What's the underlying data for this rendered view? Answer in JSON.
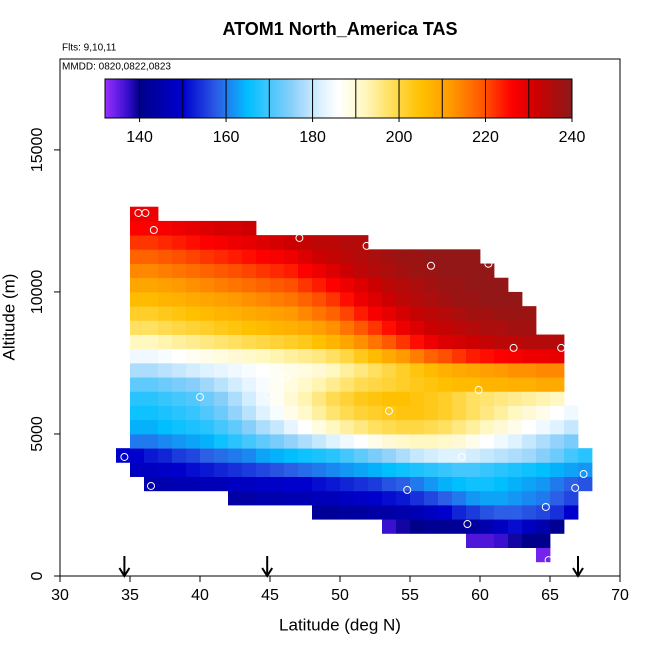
{
  "chart_data": {
    "type": "heatmap",
    "title": "ATOM1 North_America TAS",
    "notes": [
      "Flts: 9,10,11",
      "MMDD: 0820,0822,0823"
    ],
    "x_label": "Latitude (deg N)",
    "y_label": "Altitude (m)",
    "xlim": [
      30,
      70
    ],
    "xticks": [
      30,
      35,
      40,
      45,
      50,
      55,
      60,
      65,
      70
    ],
    "ylim": [
      0,
      18200
    ],
    "yticks": [
      0,
      5000,
      10000,
      15000
    ],
    "zlim": [
      132,
      240
    ],
    "zticks": [
      140,
      160,
      180,
      200,
      220,
      240
    ],
    "colorbar_lines": [
      140,
      150,
      160,
      170,
      180,
      190,
      200,
      210,
      220,
      230
    ],
    "colorscale": [
      [
        132,
        "#9b30ff"
      ],
      [
        137,
        "#3a10d0"
      ],
      [
        140,
        "#00008b"
      ],
      [
        150,
        "#0000cd"
      ],
      [
        158,
        "#2d5fe6"
      ],
      [
        165,
        "#00bfff"
      ],
      [
        175,
        "#87cefa"
      ],
      [
        182,
        "#def2ff"
      ],
      [
        186,
        "#ffffff"
      ],
      [
        192,
        "#fff8c0"
      ],
      [
        198,
        "#ffe060"
      ],
      [
        205,
        "#ffc000"
      ],
      [
        212,
        "#ff9a00"
      ],
      [
        220,
        "#ff5000"
      ],
      [
        226,
        "#ff0000"
      ],
      [
        232,
        "#cc0000"
      ],
      [
        240,
        "#8b1a1a"
      ]
    ],
    "cell_width": 1,
    "cell_height": 500,
    "rows": [
      {
        "alt": 500,
        "lat_start": 64,
        "values": [
          134
        ]
      },
      {
        "alt": 1000,
        "lat_start": 59,
        "values": [
          136,
          136,
          137,
          139,
          140,
          140
        ]
      },
      {
        "alt": 1500,
        "lat_start": 53,
        "values": [
          137,
          139,
          140,
          141,
          141,
          142,
          143,
          145,
          148,
          151,
          148,
          145,
          141
        ]
      },
      {
        "alt": 2000,
        "lat_start": 48,
        "values": [
          142,
          142,
          143,
          143,
          144,
          144,
          145,
          146,
          148,
          150,
          153,
          155,
          157,
          158,
          158,
          157,
          156,
          154,
          150
        ]
      },
      {
        "alt": 2500,
        "lat_start": 42,
        "values": [
          144,
          144,
          145,
          145,
          146,
          146,
          147,
          147,
          148,
          149,
          150,
          151,
          152,
          154,
          156,
          158,
          160,
          162,
          163,
          163,
          162,
          161,
          160,
          158,
          156
        ]
      },
      {
        "alt": 3000,
        "lat_start": 36,
        "values": [
          145,
          145,
          146,
          146,
          147,
          147,
          148,
          148,
          149,
          149,
          150,
          150,
          151,
          152,
          153,
          154,
          155,
          157,
          158,
          160,
          162,
          164,
          165,
          166,
          166,
          165,
          164,
          163,
          162,
          160,
          158,
          157
        ]
      },
      {
        "alt": 3500,
        "lat_start": 35,
        "values": [
          148,
          148,
          149,
          150,
          151,
          152,
          153,
          154,
          155,
          156,
          157,
          158,
          159,
          160,
          161,
          162,
          163,
          164,
          165,
          166,
          167,
          168,
          169,
          170,
          170,
          169,
          168,
          167,
          166,
          165,
          164,
          163,
          162
        ]
      },
      {
        "alt": 4000,
        "lat_start": 34,
        "values": [
          150,
          150,
          152,
          153,
          155,
          156,
          158,
          159,
          160,
          161,
          163,
          164,
          165,
          166,
          167,
          168,
          170,
          172,
          174,
          176,
          178,
          180,
          181,
          182,
          182,
          181,
          180,
          179,
          178,
          177,
          175,
          173,
          170,
          168
        ]
      },
      {
        "alt": 4500,
        "lat_start": 35,
        "values": [
          160,
          160,
          161,
          162,
          163,
          164,
          166,
          168,
          170,
          172,
          174,
          176,
          178,
          180,
          182,
          184,
          186,
          188,
          190,
          191,
          192,
          192,
          191,
          190,
          188,
          186,
          184,
          182,
          180,
          178,
          176,
          174
        ]
      },
      {
        "alt": 5000,
        "lat_start": 35,
        "values": [
          164,
          164,
          165,
          166,
          167,
          168,
          170,
          172,
          175,
          178,
          180,
          183,
          186,
          189,
          192,
          194,
          196,
          198,
          199,
          200,
          200,
          199,
          198,
          196,
          194,
          192,
          190,
          188,
          186,
          184,
          182,
          180
        ]
      },
      {
        "alt": 5500,
        "lat_start": 35,
        "values": [
          166,
          166,
          167,
          168,
          169,
          171,
          173,
          176,
          179,
          182,
          185,
          188,
          191,
          194,
          197,
          199,
          201,
          202,
          203,
          204,
          204,
          203,
          202,
          200,
          198,
          196,
          194,
          192,
          190,
          188,
          186,
          184
        ]
      },
      {
        "alt": 6000,
        "lat_start": 35,
        "values": [
          168,
          168,
          169,
          170,
          171,
          173,
          175,
          178,
          181,
          184,
          187,
          190,
          193,
          196,
          199,
          201,
          203,
          204,
          205,
          205,
          204,
          203,
          202,
          200,
          198,
          197,
          196,
          195,
          194,
          193,
          192
        ]
      },
      {
        "alt": 6500,
        "lat_start": 35,
        "values": [
          172,
          172,
          173,
          174,
          175,
          177,
          179,
          181,
          183,
          185,
          187,
          189,
          191,
          193,
          195,
          197,
          199,
          200,
          201,
          202,
          203,
          204,
          205,
          206,
          206,
          207,
          207,
          208,
          208,
          209,
          209
        ]
      },
      {
        "alt": 7000,
        "lat_start": 35,
        "values": [
          178,
          178,
          179,
          180,
          181,
          182,
          183,
          184,
          185,
          186,
          187,
          188,
          189,
          190,
          192,
          194,
          196,
          198,
          200,
          202,
          204,
          206,
          208,
          209,
          210,
          211,
          212,
          213,
          213,
          214,
          214
        ]
      },
      {
        "alt": 7500,
        "lat_start": 35,
        "values": [
          184,
          184,
          185,
          186,
          187,
          188,
          189,
          190,
          191,
          192,
          193,
          194,
          195,
          196,
          198,
          200,
          203,
          206,
          209,
          212,
          215,
          218,
          220,
          222,
          224,
          225,
          226,
          227,
          228,
          228,
          229
        ]
      },
      {
        "alt": 8000,
        "lat_start": 35,
        "values": [
          192,
          192,
          193,
          194,
          195,
          196,
          197,
          198,
          199,
          200,
          201,
          202,
          203,
          205,
          207,
          210,
          213,
          216,
          219,
          222,
          225,
          228,
          230,
          231,
          232,
          233,
          234,
          234,
          235,
          235,
          235
        ]
      },
      {
        "alt": 8500,
        "lat_start": 35,
        "values": [
          198,
          198,
          199,
          200,
          201,
          202,
          203,
          204,
          205,
          206,
          207,
          208,
          209,
          211,
          213,
          216,
          219,
          222,
          225,
          228,
          230,
          232,
          233,
          234,
          235,
          236,
          236,
          237,
          237
        ]
      },
      {
        "alt": 9000,
        "lat_start": 35,
        "values": [
          202,
          202,
          203,
          204,
          205,
          206,
          207,
          208,
          209,
          210,
          211,
          212,
          214,
          216,
          218,
          221,
          224,
          227,
          229,
          231,
          233,
          234,
          235,
          236,
          237,
          237,
          238,
          238,
          238
        ]
      },
      {
        "alt": 9500,
        "lat_start": 35,
        "values": [
          206,
          206,
          207,
          208,
          209,
          210,
          211,
          212,
          213,
          214,
          215,
          216,
          218,
          220,
          222,
          225,
          228,
          230,
          232,
          234,
          235,
          236,
          237,
          238,
          238,
          239,
          239,
          239
        ]
      },
      {
        "alt": 10000,
        "lat_start": 35,
        "values": [
          210,
          210,
          211,
          212,
          213,
          214,
          215,
          216,
          217,
          218,
          219,
          220,
          222,
          224,
          226,
          228,
          230,
          232,
          234,
          235,
          236,
          237,
          238,
          238,
          239,
          239,
          239
        ]
      },
      {
        "alt": 10500,
        "lat_start": 35,
        "values": [
          214,
          214,
          215,
          216,
          217,
          218,
          219,
          220,
          221,
          222,
          223,
          224,
          226,
          228,
          230,
          232,
          234,
          235,
          236,
          237,
          238,
          238,
          239,
          239,
          239,
          239
        ]
      },
      {
        "alt": 11000,
        "lat_start": 35,
        "values": [
          218,
          218,
          219,
          220,
          221,
          222,
          223,
          224,
          225,
          226,
          227,
          228,
          230,
          232,
          233,
          234,
          235,
          236,
          237,
          238,
          238,
          239,
          239,
          239,
          239
        ]
      },
      {
        "alt": 11500,
        "lat_start": 35,
        "values": [
          222,
          222,
          223,
          224,
          225,
          226,
          227,
          228,
          229,
          230,
          231,
          232,
          233,
          234,
          234,
          235,
          235
        ]
      },
      {
        "alt": 12000,
        "lat_start": 35,
        "values": [
          226,
          226,
          227,
          228,
          229,
          230,
          231,
          231,
          232
        ]
      },
      {
        "alt": 12500,
        "lat_start": 35,
        "values": [
          228,
          228
        ]
      }
    ],
    "points": {
      "lat": [
        34.6,
        35.6,
        36.1,
        36.7,
        36.5,
        40.0,
        44.9,
        46.1,
        47.1,
        51.9,
        53.5,
        54.8,
        56.5,
        58.7,
        59.1,
        59.9,
        60.6,
        62.4,
        64.7,
        65.8,
        66.8,
        67.4,
        64.9
      ],
      "alt": [
        4190,
        12780,
        12780,
        12180,
        3170,
        6300,
        6370,
        7010,
        11900,
        11620,
        5810,
        3030,
        10920,
        4190,
        1830,
        6550,
        10990,
        8030,
        2430,
        8030,
        3100,
        3590,
        560
      ]
    },
    "arrows": [
      34.6,
      44.8,
      67.0
    ]
  }
}
